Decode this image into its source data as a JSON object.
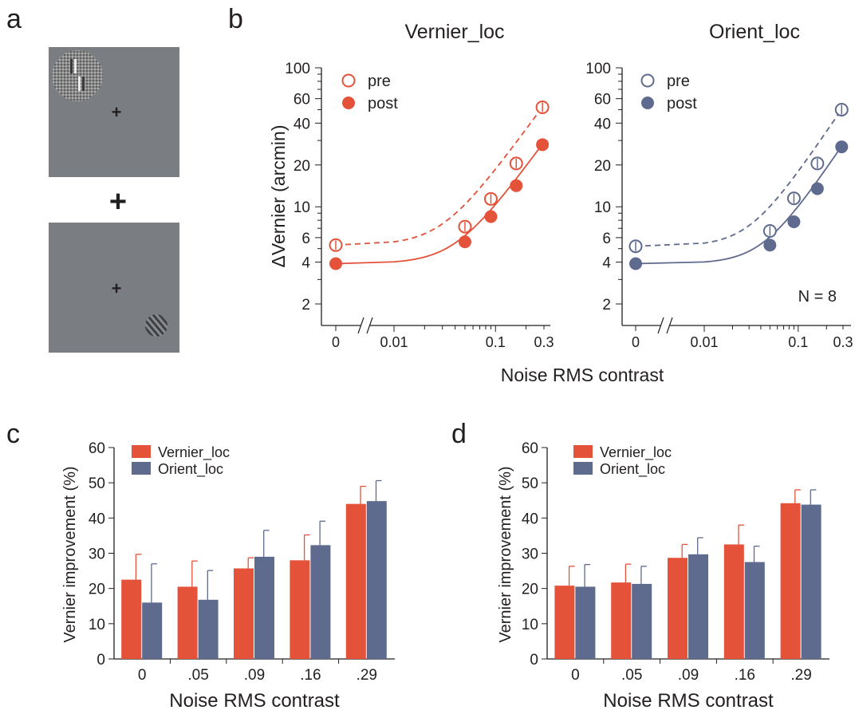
{
  "panels": {
    "a": "a",
    "b": "b",
    "c": "c",
    "d": "d"
  },
  "stimulus": {
    "fixation": "+",
    "combine": "+"
  },
  "colors": {
    "vernier": "#e4523a",
    "orient": "#5e6a8e",
    "stim_bg": "#7a7d82",
    "axis": "#231f20"
  },
  "chart_data": [
    {
      "type": "scatter",
      "title": "Vernier_loc",
      "xlabel": "Noise RMS contrast",
      "ylabel": "ΔVernier (arcmin)",
      "xscale": "log-with-break",
      "yscale": "log",
      "ylim": [
        1.4,
        100
      ],
      "yticks": [
        "100",
        "60",
        "40",
        "20",
        "10",
        "6",
        "4",
        "2"
      ],
      "xticks": [
        "0",
        "0.01",
        "0.1",
        "0.3"
      ],
      "legend": [
        "pre",
        "post"
      ],
      "color": "#e4523a",
      "series": [
        {
          "name": "pre",
          "x": [
            0,
            0.05,
            0.09,
            0.16,
            0.29
          ],
          "y": [
            5.3,
            7.2,
            11.4,
            20.5,
            52
          ]
        },
        {
          "name": "post",
          "x": [
            0,
            0.05,
            0.09,
            0.16,
            0.29
          ],
          "y": [
            3.9,
            5.6,
            8.5,
            14.2,
            28
          ]
        }
      ]
    },
    {
      "type": "scatter",
      "title": "Orient_loc",
      "xlabel": "Noise RMS contrast",
      "yscale": "log",
      "ylim": [
        1.4,
        100
      ],
      "yticks": [
        "100",
        "60",
        "40",
        "20",
        "10",
        "6",
        "4",
        "2"
      ],
      "xticks": [
        "0",
        "0.01",
        "0.1",
        "0.3"
      ],
      "legend": [
        "pre",
        "post"
      ],
      "annotation": "N = 8",
      "color": "#5e6a8e",
      "series": [
        {
          "name": "pre",
          "x": [
            0,
            0.05,
            0.09,
            0.16,
            0.29
          ],
          "y": [
            5.2,
            6.7,
            11.5,
            20.5,
            50
          ]
        },
        {
          "name": "post",
          "x": [
            0,
            0.05,
            0.09,
            0.16,
            0.29
          ],
          "y": [
            3.9,
            5.3,
            7.8,
            13.5,
            27
          ]
        }
      ]
    },
    {
      "type": "bar",
      "xlabel": "Noise RMS contrast",
      "ylabel": "Vernier improvement (%)",
      "ylim": [
        0,
        60
      ],
      "yticks": [
        "0",
        "10",
        "20",
        "30",
        "40",
        "50",
        "60"
      ],
      "categories": [
        "0",
        ".05",
        ".09",
        ".16",
        ".29"
      ],
      "series": [
        {
          "name": "Vernier_loc",
          "values": [
            22.5,
            20.5,
            25.7,
            28,
            44
          ],
          "errors": [
            7.2,
            7.3,
            3,
            7.2,
            5
          ]
        },
        {
          "name": "Orient_loc",
          "values": [
            16,
            16.8,
            29,
            32.3,
            44.8
          ],
          "errors": [
            11,
            8.3,
            7.5,
            6.8,
            5.8
          ]
        }
      ]
    },
    {
      "type": "bar",
      "xlabel": "Noise RMS contrast",
      "ylabel": "Vernier improvement (%)",
      "ylim": [
        0,
        60
      ],
      "yticks": [
        "0",
        "10",
        "20",
        "30",
        "40",
        "50",
        "60"
      ],
      "categories": [
        "0",
        ".05",
        ".09",
        ".16",
        ".29"
      ],
      "series": [
        {
          "name": "Vernier_loc",
          "values": [
            20.8,
            21.7,
            28.7,
            32.5,
            44.2
          ],
          "errors": [
            5.5,
            5.2,
            3.8,
            5.5,
            3.8
          ]
        },
        {
          "name": "Orient_loc",
          "values": [
            20.5,
            21.3,
            29.7,
            27.5,
            43.8
          ],
          "errors": [
            6.3,
            5,
            4.7,
            4.5,
            4.2
          ]
        }
      ]
    }
  ]
}
